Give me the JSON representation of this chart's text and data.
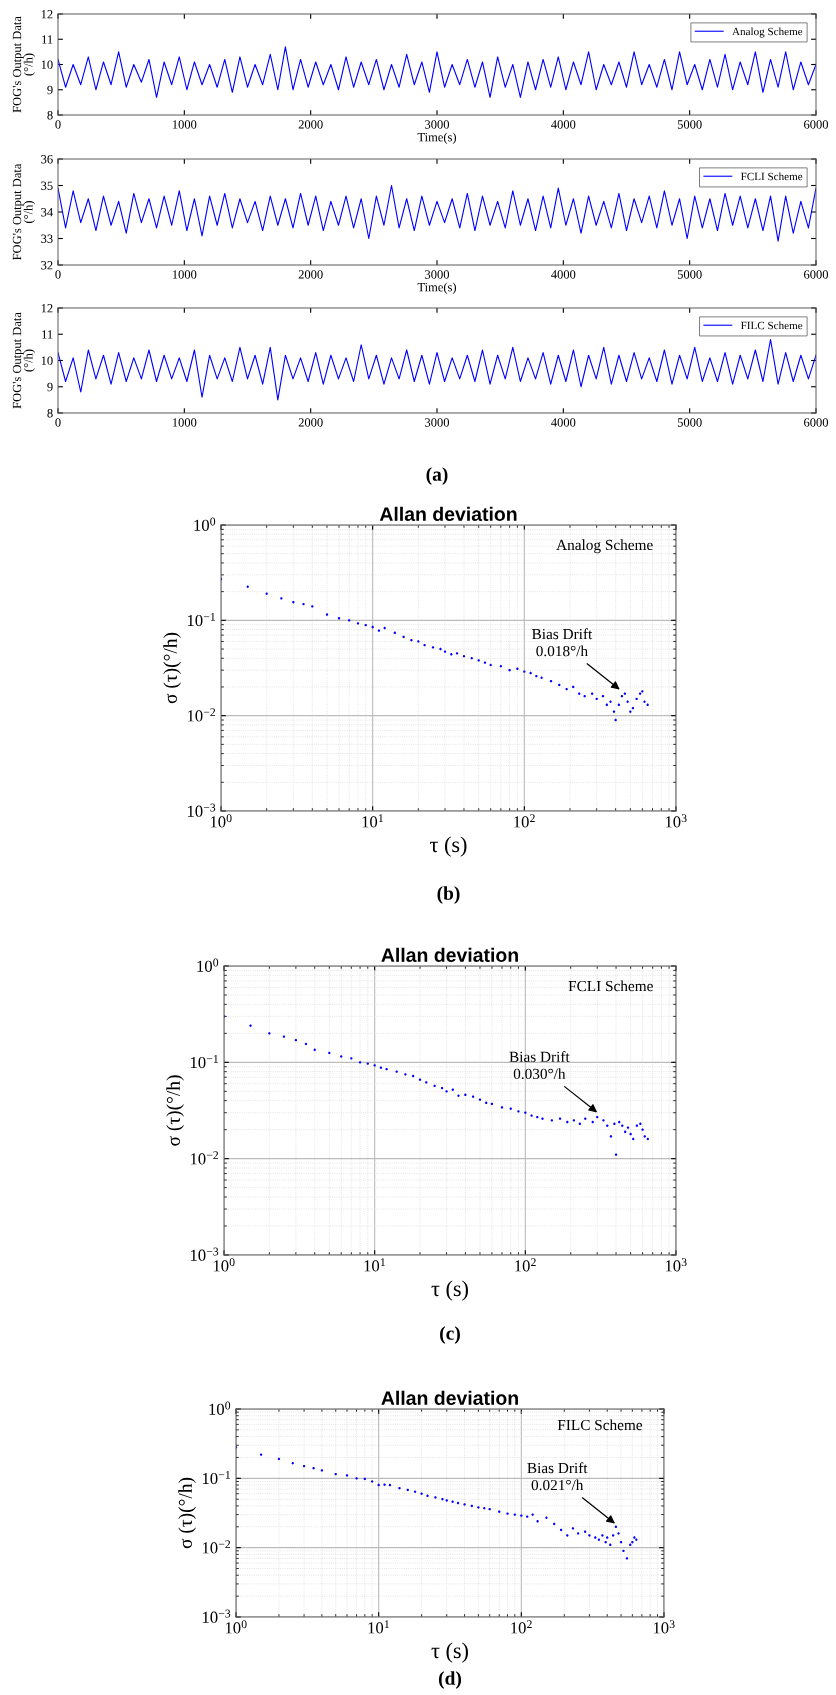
{
  "chart_data": [
    {
      "type": "line",
      "xlabel": "Time(s)",
      "ylabel": "FOG's Output Data\n(°/h)",
      "legend": "top right",
      "grid": false,
      "marker": "none",
      "line_style": "solid",
      "xlim": [
        0,
        6000
      ],
      "ylim": [
        8,
        12
      ],
      "xticks": [
        0,
        1000,
        2000,
        3000,
        4000,
        5000,
        6000
      ],
      "yticks": [
        8,
        9,
        10,
        11,
        12
      ],
      "x": [
        0,
        60,
        120,
        180,
        240,
        300,
        360,
        420,
        480,
        540,
        600,
        660,
        720,
        780,
        840,
        900,
        960,
        1020,
        1080,
        1140,
        1200,
        1260,
        1320,
        1380,
        1440,
        1500,
        1560,
        1620,
        1680,
        1740,
        1800,
        1860,
        1920,
        1980,
        2040,
        2100,
        2160,
        2220,
        2280,
        2340,
        2400,
        2460,
        2520,
        2580,
        2640,
        2700,
        2760,
        2820,
        2880,
        2940,
        3000,
        3060,
        3120,
        3180,
        3240,
        3300,
        3360,
        3420,
        3480,
        3540,
        3600,
        3660,
        3720,
        3780,
        3840,
        3900,
        3960,
        4020,
        4080,
        4140,
        4200,
        4260,
        4320,
        4380,
        4440,
        4500,
        4560,
        4620,
        4680,
        4740,
        4800,
        4860,
        4920,
        4980,
        5040,
        5100,
        5160,
        5220,
        5280,
        5340,
        5400,
        5460,
        5520,
        5580,
        5640,
        5700,
        5760,
        5820,
        5880,
        5940,
        6000
      ],
      "series": [
        {
          "name": "Analog Scheme",
          "color": "#0000ff",
          "values": [
            10.2,
            9.1,
            10.0,
            9.2,
            10.3,
            9.0,
            10.1,
            9.2,
            10.5,
            9.1,
            10.0,
            9.3,
            10.2,
            8.7,
            10.1,
            9.2,
            10.3,
            9.0,
            10.1,
            9.2,
            10.0,
            9.1,
            10.2,
            8.9,
            10.3,
            9.1,
            10.0,
            9.2,
            10.4,
            9.0,
            10.7,
            9.0,
            10.2,
            9.1,
            10.1,
            9.2,
            10.0,
            9.0,
            10.3,
            9.1,
            10.1,
            9.2,
            10.2,
            9.0,
            10.0,
            9.1,
            10.4,
            9.2,
            10.1,
            8.9,
            10.5,
            9.1,
            10.0,
            9.2,
            10.2,
            9.1,
            10.1,
            8.7,
            10.3,
            9.1,
            10.0,
            8.7,
            10.1,
            9.0,
            10.2,
            9.1,
            10.3,
            9.0,
            10.1,
            9.2,
            10.5,
            9.0,
            10.0,
            9.2,
            10.1,
            9.1,
            10.5,
            9.2,
            10.0,
            9.1,
            10.2,
            9.0,
            10.5,
            9.2,
            10.0,
            9.0,
            10.2,
            9.1,
            10.4,
            9.0,
            10.1,
            9.2,
            10.5,
            8.9,
            10.2,
            9.1,
            10.5,
            9.0,
            10.1,
            9.2,
            10.0
          ]
        }
      ]
    },
    {
      "type": "line",
      "xlabel": "Time(s)",
      "ylabel": "FOG's Output Data\n(°/h)",
      "legend": "top right",
      "grid": false,
      "marker": "none",
      "line_style": "solid",
      "xlim": [
        0,
        6000
      ],
      "ylim": [
        32,
        36
      ],
      "xticks": [
        0,
        1000,
        2000,
        3000,
        4000,
        5000,
        6000
      ],
      "yticks": [
        32,
        33,
        34,
        35,
        36
      ],
      "x": [
        0,
        60,
        120,
        180,
        240,
        300,
        360,
        420,
        480,
        540,
        600,
        660,
        720,
        780,
        840,
        900,
        960,
        1020,
        1080,
        1140,
        1200,
        1260,
        1320,
        1380,
        1440,
        1500,
        1560,
        1620,
        1680,
        1740,
        1800,
        1860,
        1920,
        1980,
        2040,
        2100,
        2160,
        2220,
        2280,
        2340,
        2400,
        2460,
        2520,
        2580,
        2640,
        2700,
        2760,
        2820,
        2880,
        2940,
        3000,
        3060,
        3120,
        3180,
        3240,
        3300,
        3360,
        3420,
        3480,
        3540,
        3600,
        3660,
        3720,
        3780,
        3840,
        3900,
        3960,
        4020,
        4080,
        4140,
        4200,
        4260,
        4320,
        4380,
        4440,
        4500,
        4560,
        4620,
        4680,
        4740,
        4800,
        4860,
        4920,
        4980,
        5040,
        5100,
        5160,
        5220,
        5280,
        5340,
        5400,
        5460,
        5520,
        5580,
        5640,
        5700,
        5760,
        5820,
        5880,
        5940,
        6000
      ],
      "series": [
        {
          "name": "FCLI Scheme",
          "color": "#0000ff",
          "values": [
            34.9,
            33.4,
            34.8,
            33.6,
            34.5,
            33.3,
            34.6,
            33.5,
            34.4,
            33.2,
            34.7,
            33.6,
            34.5,
            33.4,
            34.6,
            33.5,
            34.8,
            33.3,
            34.5,
            33.1,
            34.6,
            33.5,
            34.7,
            33.4,
            34.5,
            33.6,
            34.4,
            33.3,
            34.6,
            33.5,
            34.5,
            33.4,
            34.7,
            33.5,
            34.6,
            33.3,
            34.4,
            33.5,
            34.6,
            33.4,
            34.5,
            33.0,
            34.6,
            33.5,
            35.0,
            33.4,
            34.5,
            33.3,
            34.6,
            33.5,
            34.4,
            33.6,
            34.5,
            33.4,
            34.7,
            33.3,
            34.6,
            33.5,
            34.4,
            33.4,
            34.8,
            33.5,
            34.5,
            33.3,
            34.6,
            33.4,
            34.9,
            33.5,
            34.5,
            33.2,
            34.6,
            33.5,
            34.4,
            33.4,
            34.7,
            33.3,
            34.5,
            33.6,
            34.6,
            33.4,
            34.8,
            33.5,
            34.5,
            33.0,
            34.6,
            33.4,
            34.5,
            33.3,
            34.7,
            33.5,
            34.6,
            33.4,
            34.5,
            33.3,
            34.6,
            32.9,
            34.6,
            33.2,
            34.4,
            33.4,
            34.9
          ]
        }
      ]
    },
    {
      "type": "line",
      "ylabel": "FOG's Output Data\n(°/h)",
      "legend": "top right",
      "grid": false,
      "marker": "none",
      "line_style": "solid",
      "xlim": [
        0,
        6000
      ],
      "ylim": [
        8,
        12
      ],
      "xticks": [
        0,
        1000,
        2000,
        3000,
        4000,
        5000,
        6000
      ],
      "yticks": [
        8,
        9,
        10,
        11,
        12
      ],
      "annotations": [
        "(a)"
      ],
      "x": [
        0,
        60,
        120,
        180,
        240,
        300,
        360,
        420,
        480,
        540,
        600,
        660,
        720,
        780,
        840,
        900,
        960,
        1020,
        1080,
        1140,
        1200,
        1260,
        1320,
        1380,
        1440,
        1500,
        1560,
        1620,
        1680,
        1740,
        1800,
        1860,
        1920,
        1980,
        2040,
        2100,
        2160,
        2220,
        2280,
        2340,
        2400,
        2460,
        2520,
        2580,
        2640,
        2700,
        2760,
        2820,
        2880,
        2940,
        3000,
        3060,
        3120,
        3180,
        3240,
        3300,
        3360,
        3420,
        3480,
        3540,
        3600,
        3660,
        3720,
        3780,
        3840,
        3900,
        3960,
        4020,
        4080,
        4140,
        4200,
        4260,
        4320,
        4380,
        4440,
        4500,
        4560,
        4620,
        4680,
        4740,
        4800,
        4860,
        4920,
        4980,
        5040,
        5100,
        5160,
        5220,
        5280,
        5340,
        5400,
        5460,
        5520,
        5580,
        5640,
        5700,
        5760,
        5820,
        5880,
        5940,
        6000
      ],
      "series": [
        {
          "name": "FILC Scheme",
          "color": "#0000ff",
          "values": [
            10.3,
            9.2,
            10.1,
            8.8,
            10.4,
            9.3,
            10.2,
            9.1,
            10.3,
            9.2,
            10.1,
            9.3,
            10.4,
            9.2,
            10.2,
            9.3,
            10.1,
            9.2,
            10.4,
            8.6,
            10.2,
            9.3,
            10.1,
            9.2,
            10.5,
            9.3,
            10.2,
            9.1,
            10.5,
            8.5,
            10.2,
            9.3,
            10.1,
            9.2,
            10.3,
            9.1,
            10.2,
            9.3,
            10.1,
            9.2,
            10.6,
            9.3,
            10.2,
            9.1,
            10.1,
            9.3,
            10.4,
            9.2,
            10.2,
            9.1,
            10.3,
            9.2,
            10.1,
            9.3,
            10.2,
            9.2,
            10.4,
            9.1,
            10.2,
            9.3,
            10.5,
            9.2,
            10.1,
            9.3,
            10.3,
            9.1,
            10.2,
            9.2,
            10.4,
            9.0,
            10.2,
            9.3,
            10.5,
            9.1,
            10.2,
            9.2,
            10.3,
            9.3,
            10.1,
            9.2,
            10.4,
            9.1,
            10.2,
            9.3,
            10.5,
            9.2,
            10.1,
            9.2,
            10.3,
            9.1,
            10.2,
            9.3,
            10.4,
            9.2,
            10.8,
            9.1,
            10.3,
            9.2,
            10.2,
            9.3,
            10.2
          ]
        }
      ]
    },
    {
      "type": "scatter",
      "title": "Allan deviation",
      "xlabel": "τ (s)",
      "ylabel": "σ (τ)(°/h)",
      "log": "xy",
      "grid": true,
      "marker": "circle",
      "xlim": [
        1,
        1000
      ],
      "ylim": [
        0.001,
        1
      ],
      "xticks": [
        {
          "value": 1,
          "label": "10$^{0}$"
        },
        {
          "value": 10,
          "label": "10$^{1}$"
        },
        {
          "value": 100,
          "label": "10$^{2}$"
        },
        {
          "value": 1000,
          "label": "10$^{3}$"
        }
      ],
      "yticks": [
        {
          "value": 0.001,
          "label": "10$^{−3}$"
        },
        {
          "value": 0.01,
          "label": "10$^{−2}$"
        },
        {
          "value": 0.1,
          "label": "10$^{−1}$"
        },
        {
          "value": 1,
          "label": "10$^{0}$"
        }
      ],
      "annotations": [
        "Analog Scheme",
        {
          "text": "Bias Drift\n0.018°/h",
          "x": 440,
          "y": 0.018
        },
        "(b)"
      ],
      "x": [
        1,
        1.5,
        2,
        2.5,
        3,
        3.5,
        4,
        5,
        6,
        7,
        8,
        9,
        10,
        11,
        12,
        14,
        16,
        18,
        20,
        22,
        25,
        28,
        30,
        33,
        36,
        40,
        45,
        50,
        55,
        60,
        70,
        80,
        90,
        100,
        110,
        120,
        130,
        150,
        170,
        190,
        210,
        230,
        250,
        280,
        300,
        330,
        350,
        370,
        390,
        400,
        420,
        440,
        460,
        480,
        500,
        520,
        550,
        580,
        600,
        620,
        650
      ],
      "series": [
        {
          "color": "#0000ff",
          "values": [
            0.27,
            0.225,
            0.19,
            0.17,
            0.155,
            0.148,
            0.14,
            0.115,
            0.105,
            0.1,
            0.093,
            0.089,
            0.085,
            0.078,
            0.083,
            0.074,
            0.067,
            0.062,
            0.06,
            0.055,
            0.052,
            0.05,
            0.047,
            0.044,
            0.045,
            0.042,
            0.04,
            0.038,
            0.036,
            0.034,
            0.033,
            0.03,
            0.031,
            0.029,
            0.028,
            0.026,
            0.025,
            0.023,
            0.021,
            0.019,
            0.02,
            0.017,
            0.016,
            0.017,
            0.015,
            0.016,
            0.013,
            0.014,
            0.011,
            0.009,
            0.013,
            0.016,
            0.017,
            0.014,
            0.011,
            0.012,
            0.015,
            0.017,
            0.018,
            0.014,
            0.013
          ]
        }
      ]
    },
    {
      "type": "scatter",
      "title": "Allan deviation",
      "xlabel": "τ (s)",
      "ylabel": "σ (τ)(°/h)",
      "log": "xy",
      "grid": true,
      "marker": "circle",
      "xlim": [
        1,
        1000
      ],
      "ylim": [
        0.001,
        1
      ],
      "xticks": [
        {
          "value": 1,
          "label": "10$^{0}$"
        },
        {
          "value": 10,
          "label": "10$^{1}$"
        },
        {
          "value": 100,
          "label": "10$^{2}$"
        },
        {
          "value": 1000,
          "label": "10$^{3}$"
        }
      ],
      "yticks": [
        {
          "value": 0.001,
          "label": "10$^{−3}$"
        },
        {
          "value": 0.01,
          "label": "10$^{−2}$"
        },
        {
          "value": 0.1,
          "label": "10$^{−1}$"
        },
        {
          "value": 1,
          "label": "10$^{0}$"
        }
      ],
      "annotations": [
        "FCLI Scheme",
        {
          "text": "Bias Drift\n0.030°/h",
          "x": 310,
          "y": 0.029
        },
        "(c)"
      ],
      "x": [
        1,
        1.5,
        2,
        2.5,
        3,
        3.5,
        4,
        5,
        6,
        7,
        8,
        9,
        10,
        11,
        12,
        14,
        16,
        18,
        20,
        22,
        25,
        28,
        30,
        33,
        36,
        40,
        45,
        50,
        55,
        60,
        70,
        80,
        90,
        100,
        110,
        120,
        130,
        150,
        170,
        190,
        210,
        230,
        250,
        280,
        300,
        330,
        350,
        370,
        390,
        400,
        420,
        440,
        460,
        480,
        500,
        520,
        550,
        580,
        600,
        620,
        650
      ],
      "series": [
        {
          "color": "#0000ff",
          "values": [
            0.3,
            0.24,
            0.2,
            0.185,
            0.17,
            0.155,
            0.135,
            0.125,
            0.115,
            0.11,
            0.1,
            0.097,
            0.093,
            0.088,
            0.085,
            0.08,
            0.075,
            0.072,
            0.066,
            0.062,
            0.057,
            0.054,
            0.05,
            0.052,
            0.045,
            0.046,
            0.044,
            0.041,
            0.038,
            0.037,
            0.034,
            0.033,
            0.031,
            0.03,
            0.028,
            0.027,
            0.026,
            0.025,
            0.026,
            0.024,
            0.025,
            0.023,
            0.026,
            0.024,
            0.027,
            0.025,
            0.022,
            0.017,
            0.023,
            0.011,
            0.024,
            0.022,
            0.019,
            0.021,
            0.018,
            0.016,
            0.022,
            0.023,
            0.02,
            0.017,
            0.016
          ]
        }
      ]
    },
    {
      "type": "scatter",
      "title": "Allan deviation",
      "xlabel": "τ (s)",
      "ylabel": "σ (τ)(°/h)",
      "log": "xy",
      "grid": true,
      "marker": "circle",
      "xlim": [
        1,
        1000
      ],
      "ylim": [
        0.001,
        1
      ],
      "xticks": [
        {
          "value": 1,
          "label": "10$^{0}$"
        },
        {
          "value": 10,
          "label": "10$^{1}$"
        },
        {
          "value": 100,
          "label": "10$^{2}$"
        },
        {
          "value": 1000,
          "label": "10$^{3}$"
        }
      ],
      "yticks": [
        {
          "value": 0.001,
          "label": "10$^{−3}$"
        },
        {
          "value": 0.01,
          "label": "10$^{−2}$"
        },
        {
          "value": 0.1,
          "label": "10$^{−1}$"
        },
        {
          "value": 1,
          "label": "10$^{0}$"
        }
      ],
      "annotations": [
        "FILC Scheme",
        {
          "text": "Bias Drift\n0.021°/h",
          "x": 470,
          "y": 0.021
        },
        "(d)"
      ],
      "x": [
        1,
        1.5,
        2,
        2.5,
        3,
        3.5,
        4,
        5,
        6,
        7,
        8,
        9,
        10,
        11,
        12,
        14,
        16,
        18,
        20,
        22,
        25,
        28,
        30,
        33,
        36,
        40,
        45,
        50,
        55,
        60,
        70,
        80,
        90,
        100,
        110,
        120,
        130,
        150,
        170,
        190,
        210,
        230,
        250,
        280,
        300,
        330,
        350,
        370,
        390,
        400,
        420,
        440,
        460,
        480,
        500,
        520,
        550,
        580,
        600,
        620,
        640
      ],
      "series": [
        {
          "color": "#0000ff",
          "values": [
            0.28,
            0.22,
            0.19,
            0.165,
            0.15,
            0.14,
            0.13,
            0.115,
            0.11,
            0.1,
            0.098,
            0.09,
            0.08,
            0.081,
            0.08,
            0.072,
            0.068,
            0.064,
            0.06,
            0.056,
            0.053,
            0.05,
            0.048,
            0.046,
            0.044,
            0.042,
            0.04,
            0.038,
            0.037,
            0.036,
            0.033,
            0.031,
            0.03,
            0.029,
            0.028,
            0.03,
            0.024,
            0.027,
            0.022,
            0.018,
            0.015,
            0.019,
            0.016,
            0.017,
            0.015,
            0.014,
            0.013,
            0.015,
            0.012,
            0.014,
            0.011,
            0.015,
            0.02,
            0.016,
            0.012,
            0.009,
            0.007,
            0.011,
            0.012,
            0.014,
            0.013
          ]
        }
      ]
    }
  ]
}
